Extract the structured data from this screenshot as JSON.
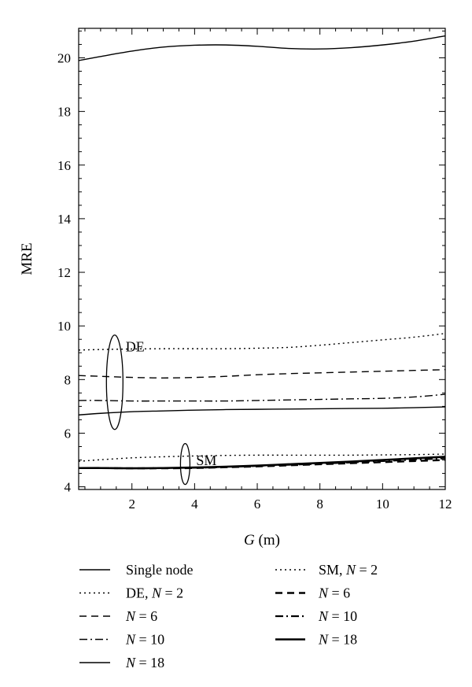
{
  "chart_data": {
    "type": "line",
    "title": "",
    "xlabel": "G (m)",
    "ylabel": "MRE",
    "xlim": [
      0.3,
      12
    ],
    "ylim": [
      3.9,
      21.1
    ],
    "x_ticks": [
      2,
      4,
      6,
      8,
      10,
      12
    ],
    "y_ticks": [
      4,
      6,
      8,
      10,
      12,
      14,
      16,
      18,
      20
    ],
    "grid": false,
    "legend_position": "bottom, two columns",
    "series": [
      {
        "name": "Single node",
        "group": "",
        "style": "solid-thin",
        "x": [
          0.3,
          1,
          2,
          3,
          4,
          5,
          6,
          7,
          8,
          9,
          10,
          11,
          12
        ],
        "y": [
          19.9,
          20.05,
          20.25,
          20.4,
          20.47,
          20.48,
          20.43,
          20.35,
          20.33,
          20.38,
          20.48,
          20.62,
          20.82
        ]
      },
      {
        "name": "DE, N = 2",
        "group": "DE",
        "style": "dotted",
        "x": [
          0.3,
          1,
          2,
          3,
          4,
          5,
          6,
          7,
          8,
          9,
          10,
          11,
          12
        ],
        "y": [
          9.1,
          9.12,
          9.14,
          9.15,
          9.15,
          9.15,
          9.17,
          9.2,
          9.28,
          9.38,
          9.48,
          9.58,
          9.72
        ]
      },
      {
        "name": "N = 6",
        "group": "DE",
        "style": "dashed",
        "x": [
          0.3,
          1,
          2,
          3,
          4,
          5,
          6,
          7,
          8,
          9,
          10,
          11,
          12
        ],
        "y": [
          8.15,
          8.12,
          8.08,
          8.06,
          8.08,
          8.12,
          8.18,
          8.22,
          8.25,
          8.28,
          8.31,
          8.34,
          8.37
        ]
      },
      {
        "name": "N = 10",
        "group": "DE",
        "style": "dash-dot",
        "x": [
          0.3,
          1,
          2,
          3,
          4,
          5,
          6,
          7,
          8,
          9,
          10,
          11,
          12
        ],
        "y": [
          7.22,
          7.22,
          7.2,
          7.2,
          7.2,
          7.2,
          7.22,
          7.24,
          7.26,
          7.28,
          7.3,
          7.35,
          7.45
        ]
      },
      {
        "name": "N = 18",
        "group": "DE",
        "style": "solid-thin",
        "x": [
          0.3,
          1,
          2,
          3,
          4,
          5,
          6,
          7,
          8,
          9,
          10,
          11,
          12
        ],
        "y": [
          6.68,
          6.74,
          6.8,
          6.83,
          6.86,
          6.88,
          6.89,
          6.9,
          6.91,
          6.92,
          6.93,
          6.95,
          6.98
        ]
      },
      {
        "name": "SM, N = 2",
        "group": "SM",
        "style": "dotted",
        "x": [
          0.3,
          1,
          2,
          3,
          4,
          5,
          6,
          7,
          8,
          9,
          10,
          11,
          12
        ],
        "y": [
          4.95,
          5.01,
          5.08,
          5.12,
          5.15,
          5.17,
          5.18,
          5.18,
          5.18,
          5.18,
          5.19,
          5.2,
          5.22
        ]
      },
      {
        "name": "N = 6",
        "group": "SM",
        "style": "dashed-thick",
        "x": [
          0.3,
          1,
          2,
          3,
          4,
          5,
          6,
          7,
          8,
          9,
          10,
          11,
          12
        ],
        "y": [
          4.7,
          4.7,
          4.69,
          4.69,
          4.7,
          4.73,
          4.76,
          4.8,
          4.84,
          4.88,
          4.92,
          4.96,
          5.0
        ]
      },
      {
        "name": "N = 10",
        "group": "SM",
        "style": "dash-dot-thick",
        "x": [
          0.3,
          1,
          2,
          3,
          4,
          5,
          6,
          7,
          8,
          9,
          10,
          11,
          12
        ],
        "y": [
          4.7,
          4.7,
          4.69,
          4.7,
          4.71,
          4.74,
          4.78,
          4.82,
          4.86,
          4.91,
          4.96,
          5.01,
          5.06
        ]
      },
      {
        "name": "N = 18",
        "group": "SM",
        "style": "solid-thick",
        "x": [
          0.3,
          1,
          2,
          3,
          4,
          5,
          6,
          7,
          8,
          9,
          10,
          11,
          12
        ],
        "y": [
          4.7,
          4.7,
          4.69,
          4.7,
          4.72,
          4.75,
          4.79,
          4.84,
          4.89,
          4.94,
          5.0,
          5.06,
          5.12
        ]
      }
    ],
    "annotations": [
      {
        "text": "DE",
        "x": 1.45,
        "y": 9.4
      },
      {
        "text": "SM",
        "x": 3.7,
        "y": 5.1
      }
    ],
    "legend": {
      "left": [
        "Single node",
        "DE, N = 2",
        "N = 6",
        "N = 10",
        "N = 18"
      ],
      "right": [
        "SM, N = 2",
        "N = 6",
        "N = 10",
        "N = 18"
      ]
    }
  }
}
